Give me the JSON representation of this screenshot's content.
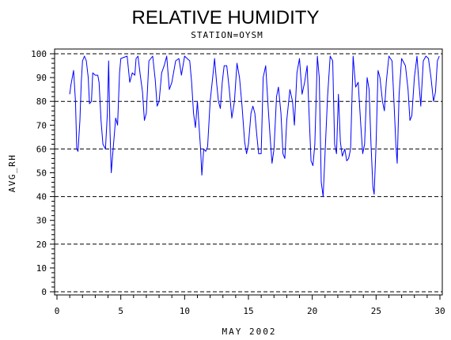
{
  "chart_data": {
    "type": "line",
    "title": "RELATIVE HUMIDITY",
    "subtitle": "STATION=OYSM",
    "xlabel": "MAY 2002",
    "ylabel": "AVG_RH",
    "xlim": [
      0,
      30
    ],
    "ylim": [
      0,
      100
    ],
    "xticks": [
      "0",
      "5",
      "10",
      "15",
      "20",
      "25",
      "30"
    ],
    "yticks": [
      "0",
      "10",
      "20",
      "30",
      "40",
      "50",
      "60",
      "70",
      "80",
      "90",
      "100"
    ],
    "reference_lines_y": [
      0,
      20,
      40,
      60,
      80,
      100
    ],
    "grid": false,
    "line_color": "#0000ff",
    "series": [
      {
        "points": [
          [
            1.0,
            83
          ],
          [
            1.1,
            87
          ],
          [
            1.3,
            93
          ],
          [
            1.45,
            80
          ],
          [
            1.55,
            60
          ],
          [
            1.65,
            59
          ],
          [
            1.8,
            72
          ],
          [
            1.9,
            88
          ],
          [
            2.0,
            97
          ],
          [
            2.15,
            99
          ],
          [
            2.3,
            97
          ],
          [
            2.45,
            90
          ],
          [
            2.55,
            79
          ],
          [
            2.7,
            80
          ],
          [
            2.8,
            92
          ],
          [
            3.0,
            91
          ],
          [
            3.2,
            91
          ],
          [
            3.3,
            88
          ],
          [
            3.45,
            72
          ],
          [
            3.6,
            62
          ],
          [
            3.8,
            60
          ],
          [
            3.95,
            75
          ],
          [
            4.05,
            97
          ],
          [
            4.15,
            68
          ],
          [
            4.25,
            50
          ],
          [
            4.4,
            60
          ],
          [
            4.6,
            73
          ],
          [
            4.75,
            70
          ],
          [
            4.9,
            92
          ],
          [
            5.0,
            98
          ],
          [
            5.5,
            99
          ],
          [
            5.7,
            88
          ],
          [
            5.9,
            92
          ],
          [
            6.1,
            91
          ],
          [
            6.2,
            98
          ],
          [
            6.35,
            99
          ],
          [
            6.5,
            92
          ],
          [
            6.7,
            84
          ],
          [
            6.85,
            72
          ],
          [
            7.0,
            75
          ],
          [
            7.2,
            97
          ],
          [
            7.5,
            99
          ],
          [
            7.7,
            89
          ],
          [
            7.85,
            78
          ],
          [
            8.0,
            80
          ],
          [
            8.2,
            92
          ],
          [
            8.4,
            95
          ],
          [
            8.6,
            99
          ],
          [
            8.8,
            85
          ],
          [
            9.0,
            88
          ],
          [
            9.3,
            97
          ],
          [
            9.55,
            98
          ],
          [
            9.75,
            91
          ],
          [
            10.0,
            99
          ],
          [
            10.4,
            97
          ],
          [
            10.55,
            88
          ],
          [
            10.7,
            75
          ],
          [
            10.85,
            69
          ],
          [
            11.0,
            80
          ],
          [
            11.1,
            72
          ],
          [
            11.25,
            60
          ],
          [
            11.35,
            49
          ],
          [
            11.5,
            60
          ],
          [
            11.65,
            59
          ],
          [
            11.8,
            61
          ],
          [
            12.0,
            80
          ],
          [
            12.2,
            90
          ],
          [
            12.35,
            98
          ],
          [
            12.5,
            88
          ],
          [
            12.65,
            80
          ],
          [
            12.8,
            77
          ],
          [
            12.95,
            88
          ],
          [
            13.1,
            95
          ],
          [
            13.3,
            95
          ],
          [
            13.5,
            85
          ],
          [
            13.7,
            73
          ],
          [
            13.9,
            80
          ],
          [
            14.1,
            96
          ],
          [
            14.3,
            90
          ],
          [
            14.5,
            78
          ],
          [
            14.7,
            63
          ],
          [
            14.85,
            58
          ],
          [
            15.0,
            62
          ],
          [
            15.2,
            75
          ],
          [
            15.35,
            78
          ],
          [
            15.5,
            75
          ],
          [
            15.65,
            66
          ],
          [
            15.8,
            58
          ],
          [
            16.0,
            58
          ],
          [
            16.15,
            90
          ],
          [
            16.35,
            95
          ],
          [
            16.55,
            77
          ],
          [
            16.7,
            65
          ],
          [
            16.85,
            54
          ],
          [
            17.0,
            60
          ],
          [
            17.2,
            82
          ],
          [
            17.35,
            86
          ],
          [
            17.55,
            75
          ],
          [
            17.7,
            58
          ],
          [
            17.85,
            56
          ],
          [
            18.0,
            72
          ],
          [
            18.25,
            85
          ],
          [
            18.45,
            80
          ],
          [
            18.6,
            70
          ],
          [
            18.8,
            92
          ],
          [
            19.0,
            98
          ],
          [
            19.2,
            83
          ],
          [
            19.4,
            88
          ],
          [
            19.6,
            95
          ],
          [
            19.75,
            75
          ],
          [
            19.9,
            55
          ],
          [
            20.05,
            53
          ],
          [
            20.2,
            62
          ],
          [
            20.4,
            99
          ],
          [
            20.55,
            90
          ],
          [
            20.7,
            46
          ],
          [
            20.85,
            40
          ],
          [
            21.0,
            58
          ],
          [
            21.2,
            82
          ],
          [
            21.4,
            99
          ],
          [
            21.6,
            97
          ],
          [
            21.75,
            62
          ],
          [
            21.9,
            58
          ],
          [
            22.05,
            83
          ],
          [
            22.2,
            63
          ],
          [
            22.35,
            57
          ],
          [
            22.55,
            60
          ],
          [
            22.7,
            55
          ],
          [
            22.85,
            56
          ],
          [
            23.0,
            60
          ],
          [
            23.2,
            99
          ],
          [
            23.4,
            86
          ],
          [
            23.6,
            88
          ],
          [
            23.8,
            70
          ],
          [
            23.95,
            58
          ],
          [
            24.1,
            62
          ],
          [
            24.3,
            90
          ],
          [
            24.45,
            85
          ],
          [
            24.6,
            62
          ],
          [
            24.75,
            44
          ],
          [
            24.85,
            41
          ],
          [
            25.0,
            62
          ],
          [
            25.15,
            93
          ],
          [
            25.3,
            90
          ],
          [
            25.5,
            80
          ],
          [
            25.65,
            76
          ],
          [
            25.8,
            88
          ],
          [
            26.0,
            99
          ],
          [
            26.25,
            97
          ],
          [
            26.4,
            80
          ],
          [
            26.55,
            62
          ],
          [
            26.65,
            54
          ],
          [
            26.8,
            83
          ],
          [
            27.0,
            98
          ],
          [
            27.3,
            95
          ],
          [
            27.5,
            85
          ],
          [
            27.65,
            72
          ],
          [
            27.8,
            74
          ],
          [
            28.0,
            90
          ],
          [
            28.2,
            99
          ],
          [
            28.35,
            88
          ],
          [
            28.5,
            78
          ],
          [
            28.7,
            97
          ],
          [
            28.9,
            99
          ],
          [
            29.1,
            98
          ],
          [
            29.3,
            90
          ],
          [
            29.5,
            80
          ],
          [
            29.65,
            84
          ],
          [
            29.8,
            97
          ],
          [
            29.95,
            99
          ]
        ]
      }
    ]
  }
}
